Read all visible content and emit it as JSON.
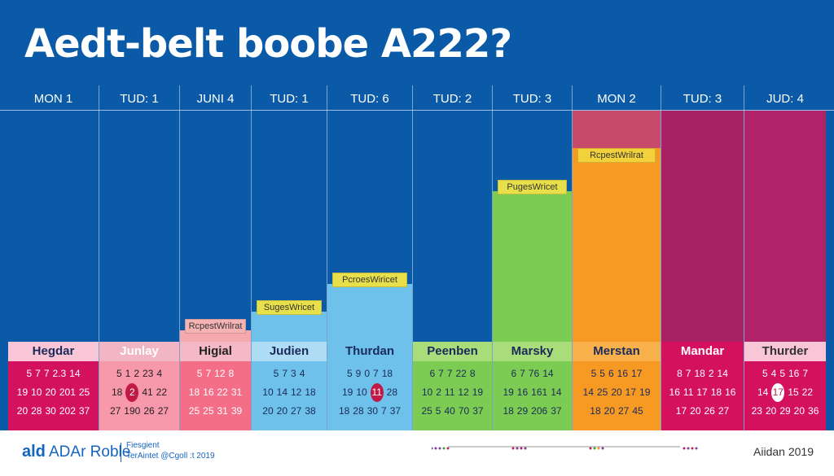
{
  "title": "Aedt-belt boobe A222?",
  "colors": {
    "background": "#0b5aa7",
    "panel_dark": "#0b5aa7"
  },
  "chart_data": {
    "type": "bar",
    "categories": [
      "MON 1",
      "TUD: 1",
      "JUNI 4",
      "TUD: 1",
      "TUD: 6",
      "TUD: 2",
      "TUD: 3",
      "MON 2",
      "TUD: 3",
      "JUD: 4"
    ],
    "series": [
      {
        "values": [
          0,
          0,
          0.05,
          0.13,
          0.25,
          0,
          0.65,
          1.0,
          1.0,
          1.0
        ]
      }
    ],
    "bar_labels": [
      "",
      "",
      "RcpestWrilrat",
      "SugesWricet",
      "PcroesWiricet",
      "",
      "PugesWricet",
      "RcpestWrilrat",
      "",
      ""
    ],
    "panels": [
      {
        "name": "Hegdar",
        "rows": [
          [
            "5",
            "7",
            "7",
            "2.3",
            "14"
          ],
          [
            "19",
            "10",
            "20",
            "201",
            "25"
          ],
          [
            "20",
            "28",
            "30",
            "202",
            "37"
          ]
        ]
      },
      {
        "name": "Junlay",
        "rows": [
          [
            "5",
            "1",
            "2",
            "23",
            "4"
          ],
          [
            "18",
            "2",
            "41",
            "22"
          ],
          [
            "27",
            "190",
            "26",
            "27"
          ]
        ]
      },
      {
        "name": "Higial",
        "rows": [
          [
            "5",
            "7",
            "12",
            "8"
          ],
          [
            "18",
            "16",
            "22",
            "31"
          ],
          [
            "25",
            "25",
            "31",
            "39"
          ]
        ]
      },
      {
        "name": "Judien",
        "rows": [
          [
            "5",
            "7",
            "3",
            "4"
          ],
          [
            "10",
            "14",
            "12",
            "18"
          ],
          [
            "20",
            "20",
            "27",
            "38"
          ]
        ]
      },
      {
        "name": "Thurdan",
        "rows": [
          [
            "5",
            "9",
            "0",
            "7",
            "18"
          ],
          [
            "19",
            "10",
            "11",
            "28"
          ],
          [
            "18",
            "28",
            "30",
            "7",
            "37"
          ]
        ]
      },
      {
        "name": "Peenben",
        "rows": [
          [
            "6",
            "7",
            "7",
            "22",
            "8"
          ],
          [
            "10",
            "2",
            "11",
            "12",
            "19"
          ],
          [
            "25",
            "5",
            "40",
            "70",
            "37"
          ]
        ]
      },
      {
        "name": "Marsky",
        "rows": [
          [
            "6",
            "7",
            "76",
            "14"
          ],
          [
            "19",
            "16",
            "161",
            "14"
          ],
          [
            "18",
            "29",
            "206",
            "37"
          ]
        ]
      },
      {
        "name": "Merstan",
        "rows": [
          [
            "5",
            "5",
            "6",
            "16",
            "17"
          ],
          [
            "14",
            "25",
            "20",
            "17",
            "19"
          ],
          [
            "18",
            "20",
            "27",
            "45"
          ]
        ]
      },
      {
        "name": "Mandar",
        "rows": [
          [
            "8",
            "7",
            "18",
            "2",
            "14"
          ],
          [
            "16",
            "11",
            "17",
            "18",
            "16"
          ],
          [
            "17",
            "20",
            "26",
            "27"
          ]
        ]
      },
      {
        "name": "Thurder",
        "rows": [
          [
            "5",
            "4",
            "5",
            "16",
            "7"
          ],
          [
            "14",
            "17",
            "15",
            "22"
          ],
          [
            "23",
            "20",
            "29",
            "20",
            "36"
          ]
        ]
      }
    ]
  },
  "footer": {
    "logo_badge": "ald",
    "logo_text": "ADAr Roble",
    "sub_line1": "Fiesgient",
    "sub_line2": "TerAintet @Cgoll :t 2019",
    "right_text": "Aiidan 2019"
  }
}
